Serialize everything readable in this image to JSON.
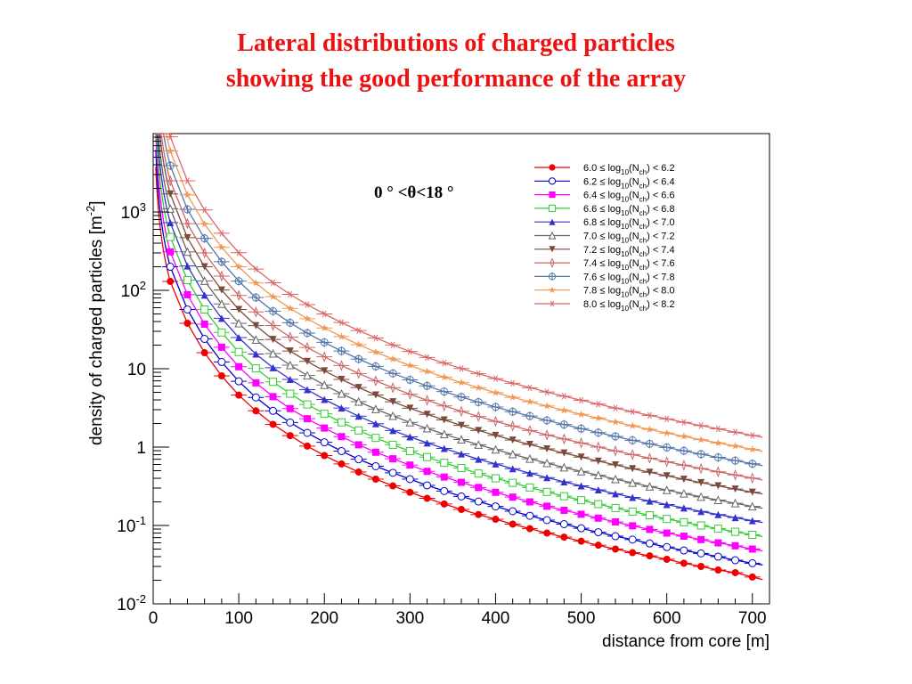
{
  "title_line1": "Lateral distributions of charged particles",
  "title_line2": "showing the good performance of the array",
  "chart_data": {
    "type": "scatter",
    "xlabel": "distance from core [m]",
    "ylabel": "density of charged particles [m",
    "ylabel_sup": "-2",
    "ylabel_end": "]",
    "xlim": [
      0,
      720
    ],
    "ylim": [
      0.01,
      10000
    ],
    "yscale": "log",
    "x_ticks": [
      "0",
      "100",
      "200",
      "300",
      "400",
      "500",
      "600",
      "700"
    ],
    "y_ticks": [
      {
        "value": 0.01,
        "base": "10",
        "sup": "-2"
      },
      {
        "value": 0.1,
        "base": "10",
        "sup": "-1"
      },
      {
        "value": 1,
        "base": "1",
        "sup": ""
      },
      {
        "value": 10,
        "base": "10",
        "sup": ""
      },
      {
        "value": 100,
        "base": "10",
        "sup": "2"
      },
      {
        "value": 1000,
        "base": "10",
        "sup": "3"
      }
    ],
    "annotation": "0 ° <θ<18 °",
    "legend_position": "top-right",
    "x": [
      20,
      40,
      60,
      80,
      100,
      120,
      140,
      160,
      180,
      200,
      220,
      240,
      260,
      280,
      300,
      320,
      340,
      360,
      380,
      400,
      420,
      440,
      460,
      480,
      500,
      520,
      540,
      560,
      580,
      600,
      620,
      640,
      660,
      680,
      700
    ],
    "series": [
      {
        "name": "6.0 ≤ log10(Nch) < 6.2",
        "label_parts": [
          "6.0 ≤ log",
          "10",
          "(N",
          "ch",
          ") < 6.2"
        ],
        "color": "#ee0000",
        "marker": "circle-filled",
        "values": [
          130,
          38,
          16,
          8.1,
          4.6,
          2.9,
          1.95,
          1.4,
          1.03,
          0.78,
          0.61,
          0.48,
          0.39,
          0.32,
          0.265,
          0.222,
          0.188,
          0.16,
          0.138,
          0.12,
          0.104,
          0.091,
          0.08,
          0.071,
          0.063,
          0.056,
          0.05,
          0.045,
          0.041,
          0.037,
          0.033,
          0.03,
          0.027,
          0.025,
          0.022
        ]
      },
      {
        "name": "6.2 ≤ log10(Nch) < 6.4",
        "label_parts": [
          "6.2 ≤ log",
          "10",
          "(N",
          "ch",
          ") < 6.4"
        ],
        "color": "#0000cc",
        "marker": "circle-open",
        "values": [
          200,
          57,
          24,
          12.2,
          6.9,
          4.3,
          2.9,
          2.06,
          1.52,
          1.15,
          0.89,
          0.7,
          0.57,
          0.47,
          0.39,
          0.325,
          0.275,
          0.235,
          0.202,
          0.175,
          0.152,
          0.133,
          0.117,
          0.104,
          0.092,
          0.082,
          0.073,
          0.066,
          0.059,
          0.053,
          0.048,
          0.044,
          0.04,
          0.036,
          0.033
        ]
      },
      {
        "name": "6.4 ≤ log10(Nch) < 6.6",
        "label_parts": [
          "6.4 ≤ log",
          "10",
          "(N",
          "ch",
          ") < 6.6"
        ],
        "color": "#ff00ff",
        "marker": "square-filled",
        "values": [
          310,
          88,
          37,
          18.8,
          10.6,
          6.6,
          4.4,
          3.1,
          2.3,
          1.75,
          1.36,
          1.07,
          0.86,
          0.71,
          0.59,
          0.49,
          0.415,
          0.355,
          0.305,
          0.265,
          0.23,
          0.2,
          0.176,
          0.156,
          0.139,
          0.124,
          0.111,
          0.099,
          0.089,
          0.08,
          0.073,
          0.066,
          0.06,
          0.055,
          0.05
        ]
      },
      {
        "name": "6.6 ≤ log10(Nch) < 6.8",
        "label_parts": [
          "6.6 ≤ log",
          "10",
          "(N",
          "ch",
          ") < 6.8"
        ],
        "color": "#33cc33",
        "marker": "square-open",
        "values": [
          480,
          135,
          57,
          29,
          16.3,
          10.1,
          6.8,
          4.8,
          3.5,
          2.66,
          2.07,
          1.63,
          1.31,
          1.07,
          0.89,
          0.745,
          0.63,
          0.54,
          0.46,
          0.4,
          0.35,
          0.305,
          0.268,
          0.236,
          0.21,
          0.187,
          0.167,
          0.15,
          0.135,
          0.121,
          0.11,
          0.1,
          0.091,
          0.083,
          0.076
        ]
      },
      {
        "name": "6.8 ≤ log10(Nch) < 7.0",
        "label_parts": [
          "6.8 ≤ log",
          "10",
          "(N",
          "ch",
          ") < 7.0"
        ],
        "color": "#3333cc",
        "marker": "triangle-filled",
        "values": [
          730,
          205,
          87,
          44,
          25,
          15.4,
          10.3,
          7.3,
          5.4,
          4.05,
          3.15,
          2.48,
          1.99,
          1.63,
          1.35,
          1.13,
          0.96,
          0.82,
          0.7,
          0.61,
          0.53,
          0.465,
          0.408,
          0.36,
          0.32,
          0.285,
          0.254,
          0.228,
          0.205,
          0.185,
          0.167,
          0.151,
          0.138,
          0.126,
          0.115
        ]
      },
      {
        "name": "7.0 ≤ log10(Nch) < 7.2",
        "label_parts": [
          "7.0 ≤ log",
          "10",
          "(N",
          "ch",
          ") < 7.2"
        ],
        "color": "#666666",
        "marker": "triangle-open",
        "values": [
          1100,
          310,
          132,
          67,
          38,
          23.4,
          15.6,
          11.1,
          8.2,
          6.2,
          4.8,
          3.8,
          3.05,
          2.5,
          2.07,
          1.73,
          1.46,
          1.25,
          1.07,
          0.93,
          0.81,
          0.71,
          0.625,
          0.55,
          0.49,
          0.437,
          0.39,
          0.35,
          0.314,
          0.283,
          0.256,
          0.232,
          0.211,
          0.192,
          0.175
        ]
      },
      {
        "name": "7.2 ≤ log10(Nch) < 7.4",
        "label_parts": [
          "7.2 ≤ log",
          "10",
          "(N",
          "ch",
          ") < 7.4"
        ],
        "color": "#7a4a3a",
        "marker": "triangle-down-filled",
        "values": [
          1700,
          470,
          200,
          101,
          57,
          35.5,
          23.6,
          16.8,
          12.4,
          9.4,
          7.3,
          5.75,
          4.62,
          3.78,
          3.13,
          2.62,
          2.22,
          1.89,
          1.63,
          1.41,
          1.23,
          1.08,
          0.95,
          0.84,
          0.745,
          0.663,
          0.593,
          0.531,
          0.477,
          0.43,
          0.389,
          0.352,
          0.32,
          0.291,
          0.266
        ]
      },
      {
        "name": "7.4 ≤ log10(Nch) < 7.6",
        "label_parts": [
          "7.4 ≤ log",
          "10",
          "(N",
          "ch",
          ") < 7.6"
        ],
        "color": "#cc6666",
        "marker": "thin-diamond",
        "values": [
          2500,
          710,
          300,
          152,
          86,
          53,
          35.6,
          25.3,
          18.7,
          14.2,
          11,
          8.7,
          7,
          5.72,
          4.73,
          3.96,
          3.35,
          2.86,
          2.46,
          2.13,
          1.86,
          1.63,
          1.43,
          1.27,
          1.13,
          1,
          0.895,
          0.802,
          0.722,
          0.65,
          0.588,
          0.533,
          0.484,
          0.441,
          0.402
        ]
      },
      {
        "name": "7.6 ≤ log10(Nch) < 7.8",
        "label_parts": [
          "7.6 ≤ log",
          "10",
          "(N",
          "ch",
          ") < 7.8"
        ],
        "color": "#5577aa",
        "marker": "crossed-circle",
        "values": [
          3900,
          1080,
          460,
          232,
          131,
          81,
          54.3,
          38.6,
          28.5,
          21.7,
          16.8,
          13.3,
          10.7,
          8.72,
          7.22,
          6.04,
          5.11,
          4.36,
          3.75,
          3.25,
          2.83,
          2.49,
          2.19,
          1.94,
          1.72,
          1.53,
          1.37,
          1.22,
          1.1,
          0.99,
          0.897,
          0.813,
          0.739,
          0.673,
          0.613
        ]
      },
      {
        "name": "7.8 ≤ log10(Nch) < 8.0",
        "label_parts": [
          "7.8 ≤ log",
          "10",
          "(N",
          "ch",
          ") < 8.0"
        ],
        "color": "#ee9955",
        "marker": "star-filled",
        "values": [
          6000,
          1650,
          700,
          354,
          200,
          124,
          82.9,
          58.9,
          43.5,
          33.1,
          25.7,
          20.3,
          16.3,
          13.3,
          11,
          9.22,
          7.8,
          6.65,
          5.72,
          4.95,
          4.32,
          3.79,
          3.34,
          2.95,
          2.62,
          2.34,
          2.09,
          1.87,
          1.68,
          1.51,
          1.37,
          1.24,
          1.13,
          1.03,
          0.935
        ]
      },
      {
        "name": "8.0 ≤ log10(Nch) < 8.2",
        "label_parts": [
          "8.0 ≤ log",
          "10",
          "(N",
          "ch",
          ") < 8.2"
        ],
        "color": "#dd6666",
        "marker": "asterisk",
        "values": [
          9100,
          2500,
          1060,
          535,
          302,
          187,
          125,
          89,
          65.7,
          50,
          38.8,
          30.7,
          24.7,
          20.1,
          16.6,
          13.9,
          11.8,
          10.05,
          8.64,
          7.48,
          6.52,
          5.72,
          5.04,
          4.46,
          3.96,
          3.53,
          3.15,
          2.83,
          2.54,
          2.29,
          2.07,
          1.88,
          1.71,
          1.55,
          1.41
        ]
      }
    ]
  }
}
